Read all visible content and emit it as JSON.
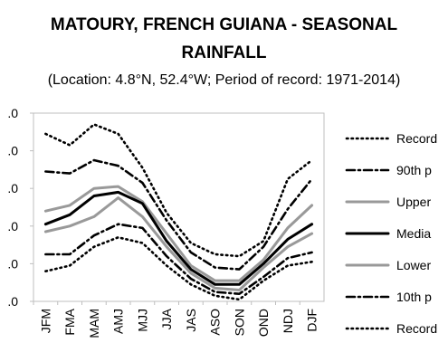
{
  "chart_data": {
    "type": "line",
    "title_line1": "MATOURY, FRENCH GUIANA - SEASONAL",
    "title_line2": "RAINFALL",
    "subtitle": "(Location: 4.8°N, 52.4°W; Period of record: 1971-2014)",
    "xlabel": "",
    "ylabel": "",
    "categories": [
      "JFM",
      "FMA",
      "MAM",
      "AMJ",
      "MJJ",
      "JJA",
      "JAS",
      "ASO",
      "SON",
      "OND",
      "NDJ",
      "DJF"
    ],
    "y_tick_labels": [
      ".0",
      ".0",
      ".0",
      ".0",
      ".0",
      ".0"
    ],
    "ylim": [
      0,
      5
    ],
    "grid": false,
    "legend_position": "right",
    "series": [
      {
        "name": "Record",
        "style": "dotted",
        "color": "#000000",
        "values": [
          4.45,
          4.15,
          4.7,
          4.45,
          3.55,
          2.35,
          1.55,
          1.25,
          1.2,
          1.6,
          3.25,
          3.75
        ]
      },
      {
        "name": "90th p",
        "style": "dashdot",
        "color": "#000000",
        "values": [
          3.45,
          3.4,
          3.75,
          3.6,
          3.15,
          2.15,
          1.3,
          0.9,
          0.85,
          1.45,
          2.45,
          3.25
        ]
      },
      {
        "name": "Upper",
        "style": "solid",
        "color": "#999999",
        "values": [
          2.4,
          2.55,
          3.0,
          3.05,
          2.65,
          1.8,
          0.95,
          0.55,
          0.55,
          1.1,
          1.95,
          2.55
        ]
      },
      {
        "name": "Media",
        "style": "solid",
        "color": "#000000",
        "values": [
          2.05,
          2.3,
          2.8,
          2.9,
          2.6,
          1.6,
          0.85,
          0.45,
          0.45,
          1.0,
          1.65,
          2.05
        ]
      },
      {
        "name": "Lower",
        "style": "solid",
        "color": "#999999",
        "values": [
          1.85,
          2.0,
          2.25,
          2.75,
          2.25,
          1.45,
          0.75,
          0.35,
          0.3,
          0.9,
          1.45,
          1.8
        ]
      },
      {
        "name": "10th p",
        "style": "dashdot",
        "color": "#000000",
        "values": [
          1.25,
          1.25,
          1.75,
          2.05,
          1.95,
          1.2,
          0.6,
          0.25,
          0.2,
          0.65,
          1.15,
          1.3
        ]
      },
      {
        "name": "Record",
        "style": "dotted",
        "color": "#000000",
        "values": [
          0.8,
          0.95,
          1.45,
          1.7,
          1.55,
          0.95,
          0.45,
          0.15,
          0.05,
          0.55,
          0.95,
          1.05
        ]
      }
    ]
  }
}
